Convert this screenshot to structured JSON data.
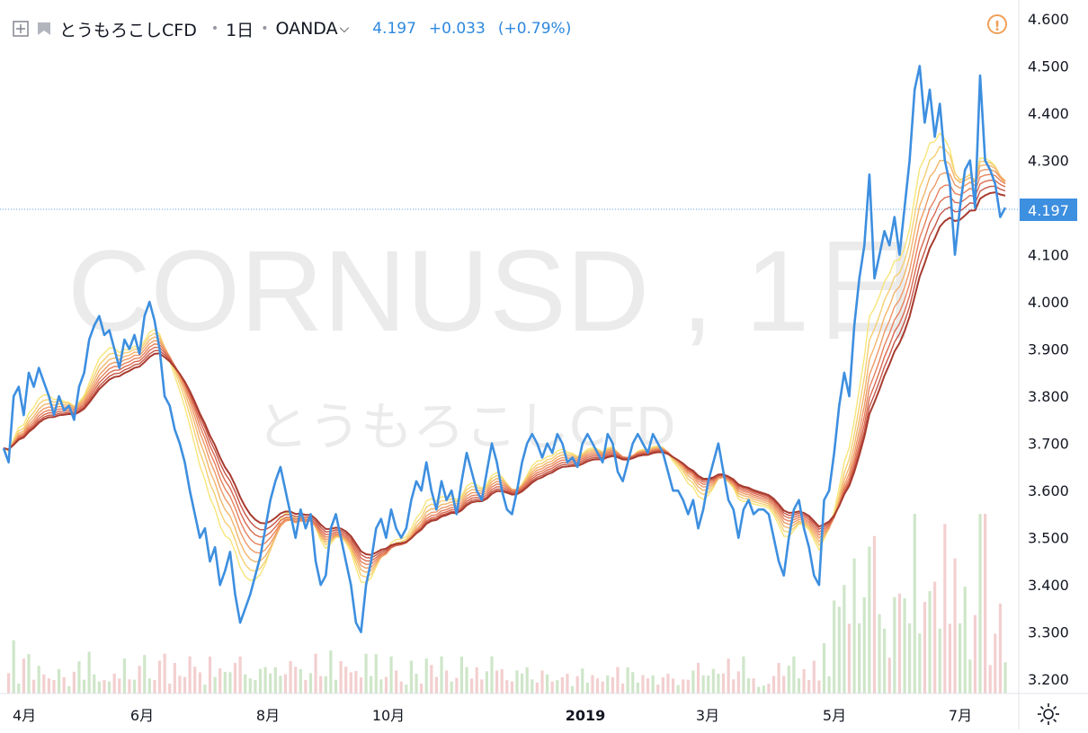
{
  "header": {
    "symbol": "とうもろこしCFD",
    "interval": "1日",
    "exchange": "OANDA",
    "last": "4.197",
    "change": "+0.033",
    "change_pct": "(+0.79%)"
  },
  "watermark": {
    "line1": "CORNUSD , 1日",
    "line2": "とうもろこしCFD"
  },
  "price_label": "4.197",
  "colors": {
    "price_line": "#3d8fe0",
    "ribbon": [
      "#f7e57a",
      "#f6cf72",
      "#f2b56c",
      "#ee9a66",
      "#e7815c",
      "#d96a50",
      "#c55445",
      "#a83b2f"
    ],
    "vol_up": "#cfe6c9",
    "vol_down": "#f3cfcf"
  },
  "chart_data": {
    "type": "line",
    "y_axis_labels": [
      "4.600",
      "4.500",
      "4.400",
      "4.300",
      "4.200",
      "4.100",
      "4.000",
      "3.900",
      "3.800",
      "3.700",
      "3.600",
      "3.500",
      "3.400",
      "3.300",
      "3.200"
    ],
    "ylim": [
      3.17,
      4.64
    ],
    "x_axis_labels": [
      "4月",
      "6月",
      "8月",
      "10月",
      "2019",
      "3月",
      "5月",
      "7月"
    ],
    "series": [
      {
        "values": [
          3.69,
          3.66,
          3.8,
          3.82,
          3.76,
          3.85,
          3.82,
          3.86,
          3.83,
          3.8,
          3.76,
          3.8,
          3.77,
          3.78,
          3.75,
          3.82,
          3.85,
          3.92,
          3.95,
          3.97,
          3.93,
          3.94,
          3.9,
          3.86,
          3.92,
          3.9,
          3.93,
          3.89,
          3.97,
          4.0,
          3.96,
          3.9,
          3.8,
          3.78,
          3.73,
          3.7,
          3.66,
          3.6,
          3.55,
          3.5,
          3.52,
          3.45,
          3.48,
          3.4,
          3.43,
          3.47,
          3.38,
          3.32,
          3.35,
          3.38,
          3.42,
          3.46,
          3.52,
          3.58,
          3.62,
          3.65,
          3.6,
          3.55,
          3.5,
          3.56,
          3.52,
          3.55,
          3.45,
          3.4,
          3.42,
          3.52,
          3.55,
          3.5,
          3.45,
          3.4,
          3.32,
          3.3,
          3.4,
          3.45,
          3.52,
          3.54,
          3.5,
          3.56,
          3.52,
          3.5,
          3.52,
          3.58,
          3.62,
          3.6,
          3.66,
          3.6,
          3.56,
          3.62,
          3.58,
          3.6,
          3.55,
          3.62,
          3.68,
          3.64,
          3.6,
          3.58,
          3.64,
          3.7,
          3.66,
          3.6,
          3.56,
          3.55,
          3.6,
          3.66,
          3.7,
          3.72,
          3.7,
          3.67,
          3.7,
          3.68,
          3.72,
          3.7,
          3.66,
          3.67,
          3.65,
          3.7,
          3.72,
          3.7,
          3.68,
          3.66,
          3.72,
          3.7,
          3.64,
          3.62,
          3.66,
          3.7,
          3.72,
          3.7,
          3.68,
          3.72,
          3.7,
          3.68,
          3.64,
          3.6,
          3.6,
          3.58,
          3.55,
          3.58,
          3.52,
          3.56,
          3.62,
          3.66,
          3.7,
          3.64,
          3.58,
          3.56,
          3.5,
          3.56,
          3.58,
          3.55,
          3.56,
          3.56,
          3.55,
          3.5,
          3.45,
          3.42,
          3.5,
          3.56,
          3.58,
          3.52,
          3.48,
          3.42,
          3.4,
          3.58,
          3.6,
          3.68,
          3.78,
          3.85,
          3.8,
          3.95,
          4.05,
          4.12,
          4.27,
          4.05,
          4.1,
          4.15,
          4.12,
          4.18,
          4.1,
          4.2,
          4.3,
          4.45,
          4.5,
          4.38,
          4.45,
          4.35,
          4.42,
          4.3,
          4.25,
          4.1,
          4.2,
          4.28,
          4.3,
          4.2,
          4.48,
          4.3,
          4.28,
          4.25,
          4.18,
          4.2
        ]
      }
    ]
  }
}
